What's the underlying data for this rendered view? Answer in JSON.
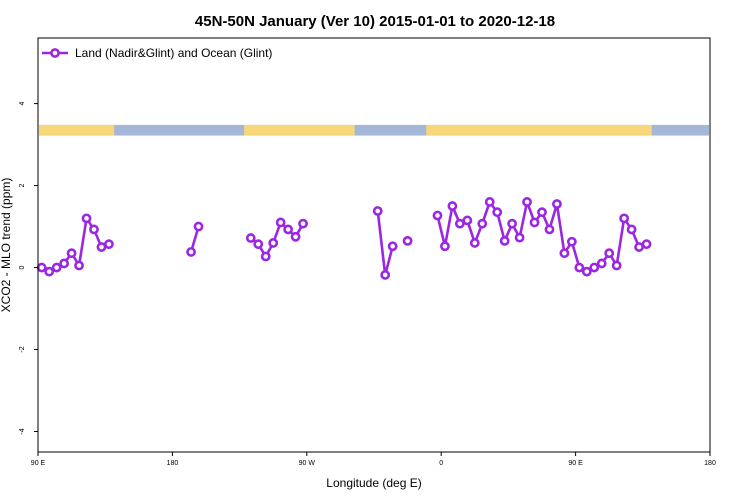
{
  "chart_data": {
    "type": "line",
    "title": "45N-50N January (Ver 10)   2015-01-01 to 2020-12-18",
    "xlabel": "Longitude (deg E)",
    "ylabel": "XCO2 - MLO trend (ppm)",
    "xlim": [
      90,
      540
    ],
    "ylim": [
      -4.5,
      5.6
    ],
    "x_ticks": [
      {
        "value": 90,
        "label": "90 E"
      },
      {
        "value": 180,
        "label": "180"
      },
      {
        "value": 270,
        "label": "90 W"
      },
      {
        "value": 360,
        "label": "0"
      },
      {
        "value": 450,
        "label": "90 E"
      },
      {
        "value": 540,
        "label": "180"
      }
    ],
    "y_ticks": [
      {
        "value": 4,
        "label": "4"
      },
      {
        "value": 2,
        "label": "2"
      },
      {
        "value": 0,
        "label": "0"
      },
      {
        "value": -2,
        "label": "-2"
      },
      {
        "value": -4,
        "label": "-4"
      }
    ],
    "legend": {
      "position": "top-left",
      "label": "Land (Nadir&Glint) and Ocean (Glint)"
    },
    "series": [
      {
        "name": "Land (Nadir&Glint) and Ocean (Glint)",
        "color": "#9b27e3",
        "segments": [
          [
            [
              92.5,
              0.0
            ],
            [
              97.5,
              -0.1
            ],
            [
              102.5,
              0.0
            ],
            [
              107.5,
              0.1
            ],
            [
              112.5,
              0.35
            ],
            [
              117.5,
              0.05
            ],
            [
              122.5,
              1.2
            ],
            [
              127.5,
              0.93
            ],
            [
              132.5,
              0.5
            ],
            [
              137.5,
              0.57
            ]
          ],
          [
            [
              192.5,
              0.38
            ],
            [
              197.5,
              1.0
            ]
          ],
          [
            [
              232.5,
              0.72
            ],
            [
              237.5,
              0.57
            ],
            [
              242.5,
              0.27
            ],
            [
              247.5,
              0.6
            ],
            [
              252.5,
              1.1
            ],
            [
              257.5,
              0.93
            ],
            [
              262.5,
              0.75
            ],
            [
              267.5,
              1.07
            ]
          ],
          [
            [
              317.5,
              1.38
            ],
            [
              322.5,
              -0.18
            ],
            [
              327.5,
              0.52
            ]
          ],
          [
            [
              337.5,
              0.65
            ]
          ],
          [
            [
              357.5,
              1.27
            ],
            [
              362.5,
              0.52
            ],
            [
              367.5,
              1.5
            ],
            [
              372.5,
              1.07
            ],
            [
              377.5,
              1.15
            ],
            [
              382.5,
              0.6
            ],
            [
              387.5,
              1.07
            ],
            [
              392.5,
              1.6
            ],
            [
              397.5,
              1.35
            ],
            [
              402.5,
              0.65
            ],
            [
              407.5,
              1.07
            ],
            [
              412.5,
              0.73
            ],
            [
              417.5,
              1.6
            ],
            [
              422.5,
              1.1
            ],
            [
              427.5,
              1.35
            ],
            [
              432.5,
              0.93
            ],
            [
              437.5,
              1.55
            ],
            [
              442.5,
              0.35
            ],
            [
              447.5,
              0.63
            ],
            [
              452.5,
              0.0
            ],
            [
              457.5,
              -0.1
            ],
            [
              462.5,
              0.0
            ],
            [
              467.5,
              0.1
            ],
            [
              472.5,
              0.35
            ],
            [
              477.5,
              0.05
            ],
            [
              482.5,
              1.2
            ],
            [
              487.5,
              0.93
            ],
            [
              492.5,
              0.5
            ],
            [
              497.5,
              0.57
            ]
          ]
        ]
      }
    ],
    "landmask": {
      "y_range": [
        3.22,
        3.48
      ],
      "land_color": "#f7d77a",
      "ocean_color": "#a4b7d8",
      "land_intervals": [
        [
          90,
          141
        ],
        [
          228,
          302
        ],
        [
          350,
          501
        ]
      ]
    },
    "grid": false
  }
}
